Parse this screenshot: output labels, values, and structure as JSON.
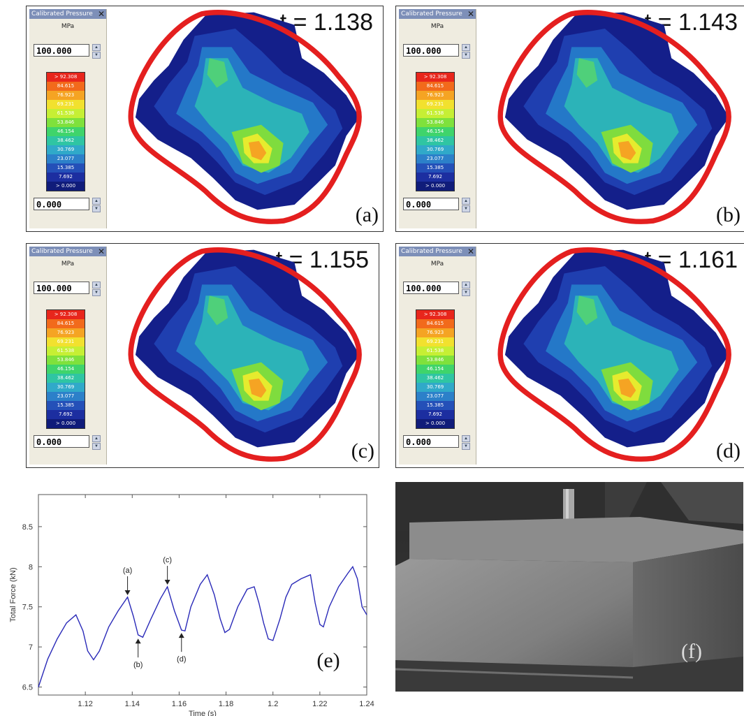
{
  "panels": [
    {
      "id": "a",
      "time_label": "t = 1.138",
      "panel_label": "(a)",
      "upper_value": "100.000",
      "lower_value": "0.000"
    },
    {
      "id": "b",
      "time_label": "t = 1.143",
      "panel_label": "(b)",
      "upper_value": "100.000",
      "lower_value": "0.000"
    },
    {
      "id": "c",
      "time_label": "t = 1.155",
      "panel_label": "(c)",
      "upper_value": "100.000",
      "lower_value": "0.000"
    },
    {
      "id": "d",
      "time_label": "t = 1.161",
      "panel_label": "(d)",
      "upper_value": "100.000",
      "lower_value": "0.000"
    }
  ],
  "sidebar": {
    "title": "Calibrated Pressure",
    "unit": "MPa",
    "close_icon": "close-icon",
    "scale_labels": [
      "> 92.308",
      "84.615",
      "76.923",
      "69.231",
      "61.538",
      "53.846",
      "46.154",
      "38.462",
      "30.769",
      "23.077",
      "15.385",
      "7.692",
      "> 0.000"
    ],
    "scale_colors": [
      "#e8261c",
      "#f26a1b",
      "#f5a423",
      "#f2e12e",
      "#c6ef34",
      "#7fe13c",
      "#3fd46b",
      "#2fc5a3",
      "#30a9c9",
      "#2c80c9",
      "#2450b8",
      "#1c2ea0",
      "#101c7a"
    ]
  },
  "outline_color": "#e41f1f",
  "chart_data": {
    "type": "line",
    "xlabel": "Time (s)",
    "ylabel": "Total Force (kN)",
    "xlim": [
      1.1,
      1.24
    ],
    "ylim": [
      6.4,
      8.9
    ],
    "xticks": [
      1.12,
      1.14,
      1.16,
      1.18,
      1.2,
      1.22,
      1.24
    ],
    "xtick_labels": [
      "1.12",
      "1.14",
      "1.16",
      "1.18",
      "1.2",
      "1.22",
      "1.24"
    ],
    "yticks": [
      6.5,
      7,
      7.5,
      8,
      8.5
    ],
    "ytick_labels": [
      "6.5",
      "7",
      "7.5",
      "8",
      "8.5"
    ],
    "series": [
      {
        "color": "#2a2ab8",
        "x": [
          1.1,
          1.104,
          1.108,
          1.112,
          1.116,
          1.119,
          1.121,
          1.1235,
          1.126,
          1.13,
          1.134,
          1.138,
          1.1405,
          1.1425,
          1.1445,
          1.148,
          1.152,
          1.155,
          1.158,
          1.161,
          1.1625,
          1.165,
          1.169,
          1.172,
          1.175,
          1.1775,
          1.1795,
          1.1815,
          1.185,
          1.189,
          1.192,
          1.194,
          1.196,
          1.198,
          1.2,
          1.203,
          1.2055,
          1.208,
          1.212,
          1.216,
          1.218,
          1.22,
          1.2215,
          1.224,
          1.228,
          1.232,
          1.234,
          1.236,
          1.238,
          1.24
        ],
        "y": [
          6.5,
          6.85,
          7.1,
          7.3,
          7.4,
          7.2,
          6.95,
          6.84,
          6.95,
          7.25,
          7.45,
          7.62,
          7.38,
          7.15,
          7.12,
          7.35,
          7.6,
          7.75,
          7.45,
          7.21,
          7.2,
          7.5,
          7.78,
          7.9,
          7.65,
          7.35,
          7.18,
          7.22,
          7.5,
          7.72,
          7.75,
          7.55,
          7.3,
          7.1,
          7.08,
          7.35,
          7.62,
          7.78,
          7.85,
          7.9,
          7.55,
          7.28,
          7.25,
          7.5,
          7.75,
          7.92,
          8.0,
          7.85,
          7.5,
          7.4
        ]
      }
    ],
    "annotations": [
      {
        "label": "(a)",
        "x": 1.138,
        "y": 7.62,
        "side": "above"
      },
      {
        "label": "(b)",
        "x": 1.1425,
        "y": 7.13,
        "side": "below"
      },
      {
        "label": "(c)",
        "x": 1.155,
        "y": 7.75,
        "side": "above"
      },
      {
        "label": "(d)",
        "x": 1.161,
        "y": 7.2,
        "side": "below"
      }
    ],
    "panel_label": "(e)"
  },
  "photo": {
    "panel_label": "(f)"
  }
}
